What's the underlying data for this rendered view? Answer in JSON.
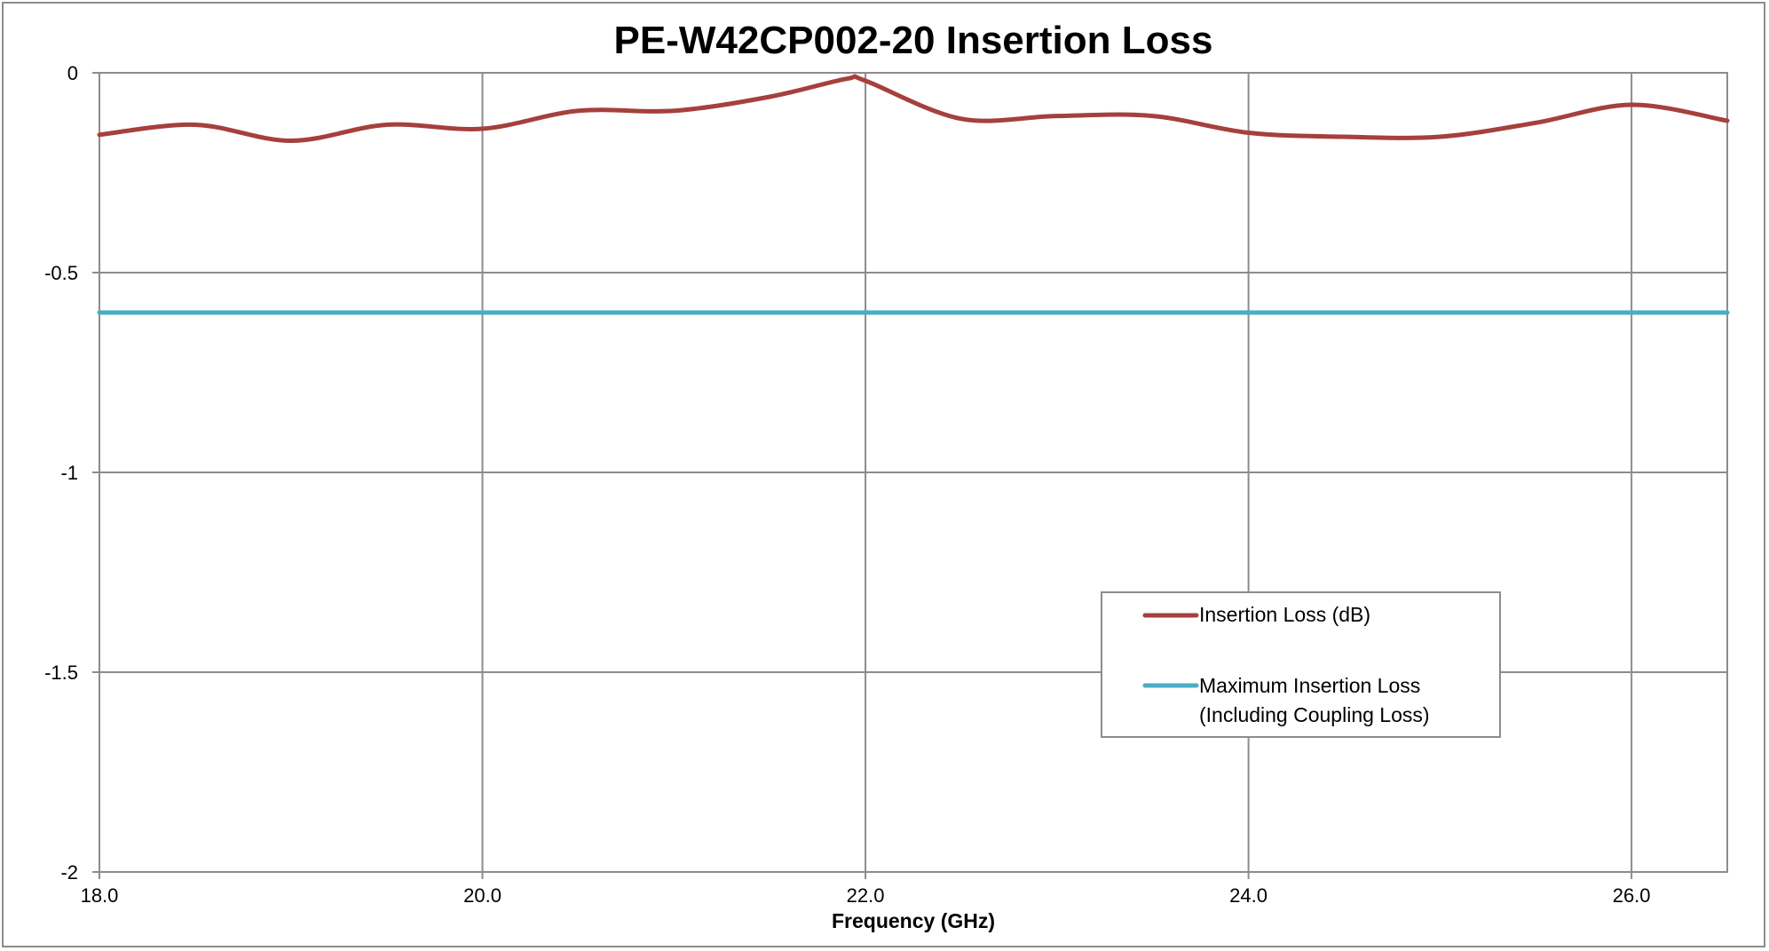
{
  "chart_data": {
    "type": "line",
    "title": "PE-W42CP002-20 Insertion Loss",
    "xlabel": "Frequency (GHz)",
    "ylabel": "",
    "xlim": [
      18.0,
      26.5
    ],
    "ylim": [
      -2,
      0
    ],
    "x_ticks": [
      18.0,
      20.0,
      22.0,
      24.0,
      26.0
    ],
    "x_tick_labels": [
      "18.0",
      "20.0",
      "22.0",
      "24.0",
      "26.0"
    ],
    "y_ticks": [
      0,
      -0.5,
      -1,
      -1.5,
      -2
    ],
    "y_tick_labels": [
      "0",
      "-0.5",
      "-1",
      "-1.5",
      "-2"
    ],
    "grid": true,
    "legend_position": "bottom-right",
    "series": [
      {
        "name": "Insertion Loss (dB)",
        "color": "#a5403d",
        "x": [
          18.0,
          18.5,
          19.0,
          19.5,
          20.0,
          20.5,
          21.0,
          21.5,
          21.9,
          22.0,
          22.5,
          23.0,
          23.5,
          24.0,
          24.5,
          25.0,
          25.5,
          26.0,
          26.5
        ],
        "y": [
          -0.155,
          -0.13,
          -0.17,
          -0.13,
          -0.14,
          -0.095,
          -0.095,
          -0.06,
          -0.015,
          -0.02,
          -0.115,
          -0.108,
          -0.108,
          -0.15,
          -0.16,
          -0.16,
          -0.125,
          -0.08,
          -0.12
        ]
      },
      {
        "name": "Maximum Insertion Loss (Including Coupling Loss)",
        "name_lines": [
          "Maximum Insertion Loss",
          "(Including Coupling Loss)"
        ],
        "color": "#4bacc6",
        "x": [
          18.0,
          26.5
        ],
        "y": [
          -0.6,
          -0.6
        ]
      }
    ]
  }
}
